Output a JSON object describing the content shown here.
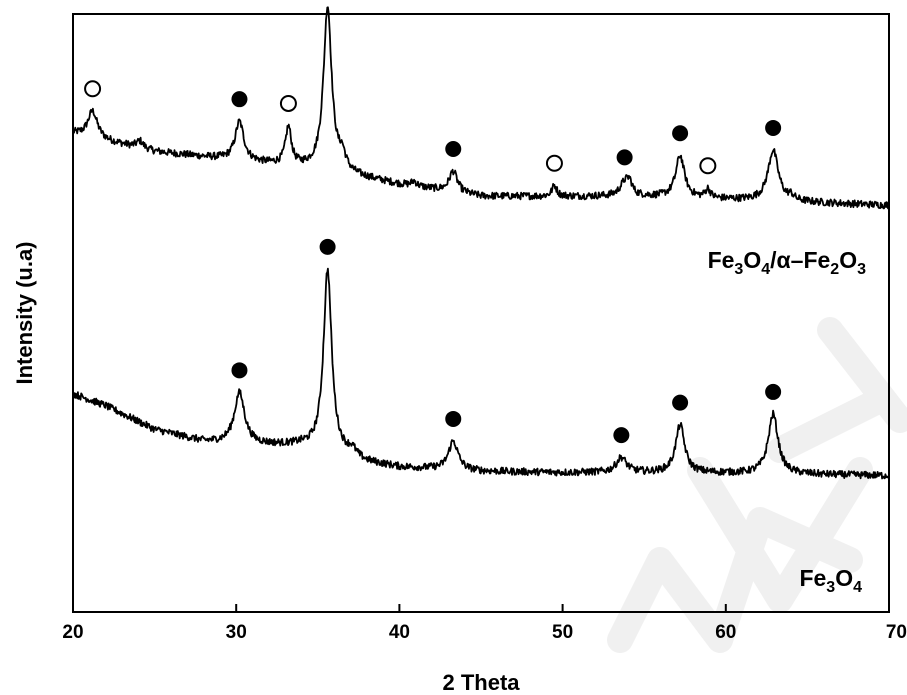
{
  "chart_data": {
    "type": "line",
    "xlabel": "2 Theta",
    "ylabel": "Intensity (u.a)",
    "xlim": [
      20,
      70
    ],
    "x_ticks": [
      20,
      30,
      40,
      50,
      60,
      70
    ],
    "y_ticks_shown": false,
    "grid": false,
    "series": [
      {
        "name": "Fe3O4/α–Fe2O3",
        "label_main_parts": [
          "Fe",
          "3",
          "O",
          "4",
          "/α–Fe",
          "2",
          "O",
          "3"
        ],
        "baseline": [
          [
            20,
            0.8
          ],
          [
            25,
            0.77
          ],
          [
            30,
            0.755
          ],
          [
            35,
            0.74
          ],
          [
            40,
            0.715
          ],
          [
            45,
            0.695
          ],
          [
            50,
            0.695
          ],
          [
            55,
            0.695
          ],
          [
            60,
            0.69
          ],
          [
            65,
            0.685
          ],
          [
            70,
            0.68
          ]
        ],
        "peaks": [
          {
            "x": 21.2,
            "h": 0.045,
            "w": 0.35,
            "marker": "open"
          },
          {
            "x": 24.1,
            "h": 0.012,
            "w": 0.25
          },
          {
            "x": 30.2,
            "h": 0.065,
            "w": 0.32,
            "marker": "filled"
          },
          {
            "x": 33.2,
            "h": 0.063,
            "w": 0.22,
            "marker": "open"
          },
          {
            "x": 35.6,
            "h": 0.275,
            "w": 0.3,
            "marker": "filled"
          },
          {
            "x": 36.5,
            "h": 0.025,
            "w": 0.25
          },
          {
            "x": 40.9,
            "h": 0.008,
            "w": 0.2
          },
          {
            "x": 43.3,
            "h": 0.035,
            "w": 0.3,
            "marker": "filled"
          },
          {
            "x": 49.5,
            "h": 0.018,
            "w": 0.18,
            "marker": "open"
          },
          {
            "x": 53.8,
            "h": 0.022,
            "w": 0.35,
            "marker": "filled"
          },
          {
            "x": 54.1,
            "h": 0.018,
            "w": 0.2
          },
          {
            "x": 57.2,
            "h": 0.07,
            "w": 0.32,
            "marker": "filled"
          },
          {
            "x": 58.9,
            "h": 0.015,
            "w": 0.18,
            "marker": "open"
          },
          {
            "x": 62.9,
            "h": 0.085,
            "w": 0.38,
            "marker": "filled"
          },
          {
            "x": 64.0,
            "h": 0.007,
            "w": 0.2
          }
        ]
      },
      {
        "name": "Fe3O4",
        "label_main_parts": [
          "Fe",
          "3",
          "O",
          "4"
        ],
        "baseline": [
          [
            20,
            0.365
          ],
          [
            22,
            0.345
          ],
          [
            25,
            0.305
          ],
          [
            28,
            0.285
          ],
          [
            31,
            0.28
          ],
          [
            34,
            0.278
          ],
          [
            36.5,
            0.262
          ],
          [
            38,
            0.25
          ],
          [
            40,
            0.242
          ],
          [
            45,
            0.235
          ],
          [
            50,
            0.233
          ],
          [
            55,
            0.233
          ],
          [
            60,
            0.232
          ],
          [
            65,
            0.23
          ],
          [
            70,
            0.228
          ]
        ],
        "peaks": [
          {
            "x": 30.2,
            "h": 0.085,
            "w": 0.38,
            "marker": "filled"
          },
          {
            "x": 35.6,
            "h": 0.305,
            "w": 0.3,
            "marker": "filled"
          },
          {
            "x": 37.1,
            "h": 0.012,
            "w": 0.3
          },
          {
            "x": 43.3,
            "h": 0.048,
            "w": 0.35,
            "marker": "filled"
          },
          {
            "x": 53.6,
            "h": 0.025,
            "w": 0.38,
            "marker": "filled"
          },
          {
            "x": 57.2,
            "h": 0.08,
            "w": 0.33,
            "marker": "filled"
          },
          {
            "x": 62.9,
            "h": 0.1,
            "w": 0.36,
            "marker": "filled"
          }
        ]
      }
    ],
    "marker_legend_semantics": {
      "filled": "filled-circle",
      "open": "open-circle"
    },
    "line_color": "#000000"
  }
}
